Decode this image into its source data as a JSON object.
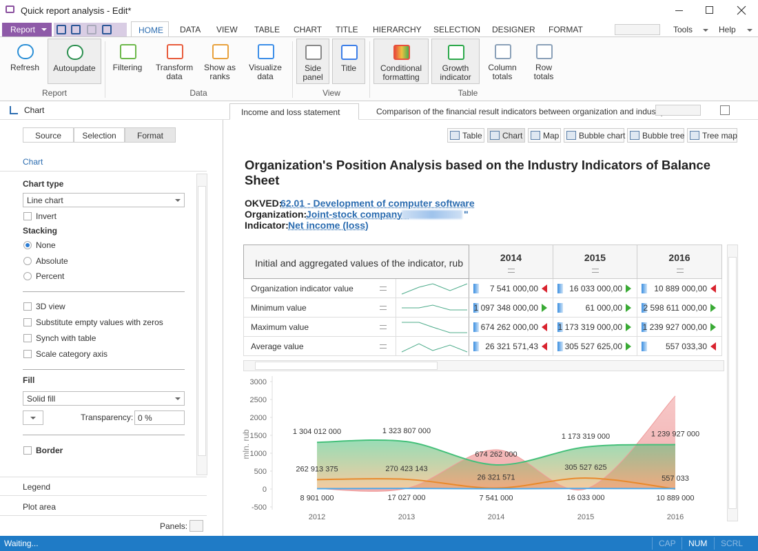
{
  "window": {
    "title": "Quick report analysis - Edit*"
  },
  "ribbon": {
    "report_button": "Report",
    "tabs": [
      "HOME",
      "DATA",
      "VIEW",
      "TABLE",
      "CHART",
      "TITLE",
      "HIERARCHY",
      "SELECTION",
      "DESIGNER",
      "FORMAT"
    ],
    "tools": "Tools",
    "help": "Help",
    "groups": [
      {
        "label": "Report",
        "buttons": [
          "Refresh",
          "Autoupdate"
        ]
      },
      {
        "label": "Data",
        "buttons": [
          "Filtering",
          "Transform data",
          "Show as ranks",
          "Visualize data"
        ]
      },
      {
        "label": "View",
        "buttons": [
          "Side panel",
          "Title"
        ]
      },
      {
        "label": "Table",
        "buttons": [
          "Conditional formatting",
          "Growth indicator",
          "Column totals",
          "Row totals"
        ]
      }
    ]
  },
  "side_panel": {
    "title": "Chart",
    "tabs": [
      "Source",
      "Selection",
      "Format"
    ],
    "section": "Chart",
    "chart_type_label": "Chart type",
    "chart_type": "Line chart",
    "invert": "Invert",
    "stacking_label": "Stacking",
    "stacking_options": [
      "None",
      "Absolute",
      "Percent"
    ],
    "checkboxes": [
      "3D view",
      "Substitute empty values with zeros",
      "Synch with table",
      "Scale category axis"
    ],
    "fill_label": "Fill",
    "fill": "Solid fill",
    "transparency_label": "Transparency:",
    "transparency": "0 %",
    "border": "Border",
    "sections": [
      "Legend",
      "Plot area"
    ],
    "panels": "Panels:"
  },
  "document_tabs": [
    "Income and loss statement",
    "Comparison of the financial result indicators between organization and industry"
  ],
  "view_buttons": [
    "Table",
    "Chart",
    "Map",
    "Bubble chart",
    "Bubble tree",
    "Tree map"
  ],
  "report": {
    "title": "Organization's Position Analysis based on the Industry Indicators of Balance Sheet",
    "okved_label": "OKVED:",
    "okved": "62.01 - Development of computer software",
    "organization_label": "Organization:",
    "organization_prefix": "Joint-stock company \"",
    "organization_suffix": "\"",
    "indicator_label": "Indicator:",
    "indicator": "Net income (loss)"
  },
  "table": {
    "header": "Initial and aggregated values of the indicator, rub",
    "columns": [
      "2014",
      "2015",
      "2016"
    ],
    "rows": [
      {
        "name": "Organization indicator value",
        "cells": [
          {
            "text": "7 541 000,00",
            "trend": "down"
          },
          {
            "text": "16 033 000,00",
            "trend": "up"
          },
          {
            "text": "10 889 000,00",
            "trend": "down"
          }
        ]
      },
      {
        "name": "Minimum value",
        "cells": [
          {
            "text": "1 097 348 000,00",
            "trend": "up"
          },
          {
            "text": "61 000,00",
            "trend": "up"
          },
          {
            "text": "2 598 611 000,00",
            "trend": "up"
          }
        ]
      },
      {
        "name": "Maximum value",
        "cells": [
          {
            "text": "674 262 000,00",
            "trend": "down"
          },
          {
            "text": "1 173 319 000,00",
            "trend": "up"
          },
          {
            "text": "1 239 927 000,00",
            "trend": "up"
          }
        ]
      },
      {
        "name": "Average value",
        "cells": [
          {
            "text": "26 321 571,43",
            "trend": "down"
          },
          {
            "text": "305 527 625,00",
            "trend": "up"
          },
          {
            "text": "557 033,30",
            "trend": "down"
          }
        ]
      }
    ]
  },
  "chart": {
    "type": "line",
    "y_label": "mln. rub",
    "categories": [
      "2012",
      "2013",
      "2014",
      "2015",
      "2016"
    ],
    "ylim": [
      -500,
      3000
    ],
    "yticks": [
      -500,
      0,
      500,
      1000,
      1500,
      2000,
      2500,
      3000
    ],
    "grid": false,
    "series": [
      {
        "name": "Minimum value",
        "color": "#ef9a9a",
        "style": "area",
        "values": [
          8.901,
          17.027,
          1097.348,
          0.061,
          2598.611
        ]
      },
      {
        "name": "Maximum value",
        "color": "#45c07a",
        "style": "area",
        "label_position": "above",
        "values": [
          1304.012,
          1323.807,
          674.262,
          1173.319,
          1239.927
        ],
        "value_labels": [
          "1 304 012 000",
          "1 323 807 000",
          "674 262 000",
          "1 173 319 000",
          "1 239 927 000"
        ]
      },
      {
        "name": "Average value",
        "color": "#e8892b",
        "style": "line",
        "label_position": "above",
        "values": [
          262.913375,
          270.423143,
          26.321571,
          305.527625,
          0.557033
        ],
        "value_labels": [
          "262 913 375",
          "270 423 143",
          "26 321 571",
          "305 527 625",
          "557 033"
        ]
      },
      {
        "name": "Organization indicator value",
        "color": "#4fa8e8",
        "style": "line",
        "label_position": "below",
        "values": [
          8.901,
          17.027,
          7.541,
          16.033,
          10.889
        ],
        "value_labels": [
          "8 901 000",
          "17 027 000",
          "7 541 000",
          "16 033 000",
          "10 889 000"
        ]
      }
    ]
  },
  "status": {
    "text": "Waiting...",
    "indicators": [
      {
        "label": "CAP",
        "active": false
      },
      {
        "label": "NUM",
        "active": true
      },
      {
        "label": "SCRL",
        "active": false
      }
    ]
  }
}
